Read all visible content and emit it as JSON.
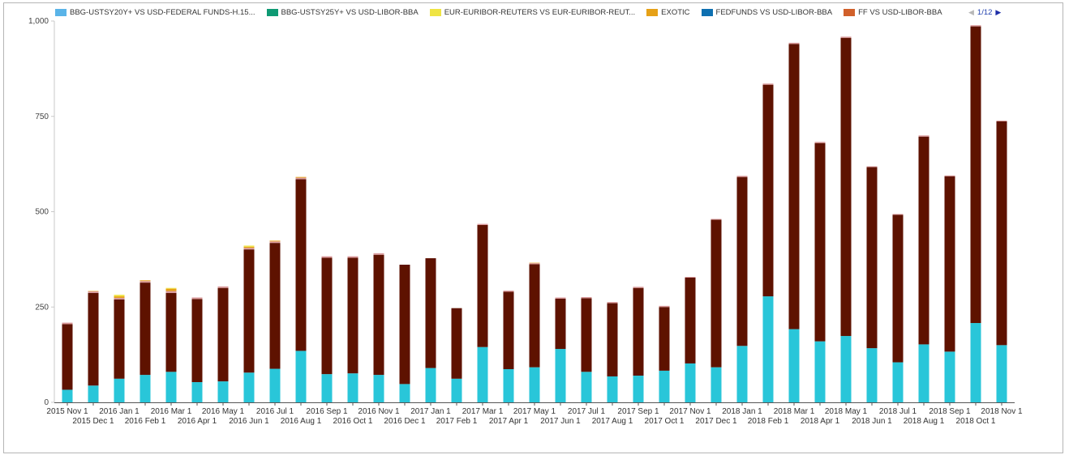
{
  "legend": {
    "items": [
      {
        "label": "BBG-USTSY20Y+ VS USD-FEDERAL FUNDS-H.15...",
        "color": "#5ab4e8"
      },
      {
        "label": "BBG-USTSY25Y+ VS USD-LIBOR-BBA",
        "color": "#0f9a74"
      },
      {
        "label": "EUR-EURIBOR-REUTERS VS EUR-EURIBOR-REUT...",
        "color": "#efe443"
      },
      {
        "label": "EXOTIC",
        "color": "#e6a117"
      },
      {
        "label": "FEDFUNDS VS USD-LIBOR-BBA",
        "color": "#0e70b1"
      },
      {
        "label": "FF VS USD-LIBOR-BBA",
        "color": "#d1602a"
      }
    ],
    "pager": {
      "text": "1/12",
      "prev_icon": "triangle-left-icon",
      "next_icon": "triangle-right-icon"
    }
  },
  "chart_data": {
    "type": "bar",
    "stacked": true,
    "title": "",
    "xlabel": "",
    "ylabel": "",
    "ylim": [
      0,
      1000
    ],
    "yticks": [
      0,
      250,
      500,
      750,
      1000
    ],
    "ytick_labels": [
      "0",
      "250",
      "500",
      "750",
      "1,000"
    ],
    "grid": false,
    "legend_position": "top",
    "categories": [
      "2015 Nov 1",
      "2015 Dec 1",
      "2016 Jan 1",
      "2016 Feb 1",
      "2016 Mar 1",
      "2016 Apr 1",
      "2016 May 1",
      "2016 Jun 1",
      "2016 Jul 1",
      "2016 Aug 1",
      "2016 Sep 1",
      "2016 Oct 1",
      "2016 Nov 1",
      "2016 Dec 1",
      "2017 Jan 1",
      "2017 Feb 1",
      "2017 Mar 1",
      "2017 Apr 1",
      "2017 May 1",
      "2017 Jun 1",
      "2017 Jul 1",
      "2017 Aug 1",
      "2017 Sep 1",
      "2017 Oct 1",
      "2017 Nov 1",
      "2017 Dec 1",
      "2018 Jan 1",
      "2018 Feb 1",
      "2018 Mar 1",
      "2018 Apr 1",
      "2018 May 1",
      "2018 Jun 1",
      "2018 Jul 1",
      "2018 Aug 1",
      "2018 Sep 1",
      "2018 Oct 1",
      "2018 Nov 1"
    ],
    "series": [
      {
        "color": "#29c6d9",
        "values": [
          33,
          44,
          62,
          72,
          80,
          53,
          55,
          78,
          88,
          135,
          74,
          76,
          72,
          48,
          90,
          62,
          145,
          87,
          92,
          140,
          80,
          68,
          70,
          83,
          102,
          92,
          148,
          278,
          192,
          160,
          174,
          142,
          105,
          152,
          133,
          208,
          150
        ]
      },
      {
        "color": "#5e1200",
        "values": [
          172,
          243,
          208,
          242,
          207,
          218,
          245,
          323,
          330,
          450,
          305,
          303,
          315,
          313,
          288,
          185,
          320,
          203,
          270,
          132,
          193,
          192,
          230,
          167,
          225,
          387,
          443,
          555,
          748,
          520,
          782,
          475,
          387,
          545,
          460,
          778,
          587
        ]
      },
      {
        "color": "#d9989a",
        "values": [
          4,
          4,
          4,
          4,
          5,
          4,
          4,
          4,
          4,
          4,
          4,
          4,
          4,
          0,
          0,
          0,
          3,
          3,
          3,
          3,
          3,
          3,
          3,
          3,
          2,
          2,
          3,
          3,
          3,
          3,
          3,
          2,
          2,
          3,
          2,
          3,
          2
        ]
      },
      {
        "color": "#e6a117",
        "values": [
          0,
          1,
          4,
          2,
          6,
          0,
          0,
          3,
          2,
          2,
          0,
          0,
          0,
          0,
          0,
          0,
          0,
          0,
          1,
          0,
          0,
          0,
          0,
          0,
          0,
          0,
          0,
          0,
          0,
          0,
          0,
          0,
          0,
          0,
          0,
          0,
          0
        ]
      },
      {
        "color": "#efe443",
        "values": [
          0,
          0,
          4,
          0,
          2,
          0,
          0,
          3,
          0,
          0,
          0,
          0,
          0,
          0,
          0,
          0,
          0,
          0,
          0,
          0,
          0,
          0,
          0,
          0,
          0,
          0,
          0,
          0,
          0,
          0,
          0,
          0,
          0,
          0,
          0,
          0,
          0
        ]
      }
    ]
  }
}
